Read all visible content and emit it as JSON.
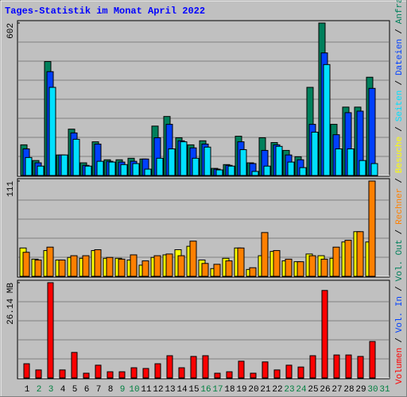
{
  "title": "Tages-Statistik im Monat April 2022",
  "x_axis": {
    "categories": [
      "1",
      "2",
      "3",
      "4",
      "5",
      "6",
      "7",
      "8",
      "9",
      "10",
      "11",
      "12",
      "13",
      "14",
      "15",
      "16",
      "17",
      "18",
      "19",
      "20",
      "21",
      "22",
      "23",
      "24",
      "25",
      "26",
      "27",
      "28",
      "29",
      "30",
      "31"
    ],
    "colors": [
      "#000000",
      "#008040",
      "#008040",
      "#000000",
      "#000000",
      "#000000",
      "#000000",
      "#000000",
      "#008040",
      "#008040",
      "#000000",
      "#000000",
      "#000000",
      "#000000",
      "#000000",
      "#008040",
      "#008040",
      "#000000",
      "#000000",
      "#000000",
      "#000000",
      "#000000",
      "#008040",
      "#008040",
      "#000000",
      "#000000",
      "#000000",
      "#000000",
      "#000000",
      "#008040",
      "#008040"
    ]
  },
  "legend_separator": "/",
  "legend": [
    {
      "text": "Volumen",
      "color": "#ff0000"
    },
    {
      "text": "Vol. In",
      "color": "#0040ff"
    },
    {
      "text": "Vol. Out",
      "color": "#00805c"
    },
    {
      "text": "Rechner",
      "color": "#ff8000"
    },
    {
      "text": "Besuche",
      "color": "#ffff00"
    },
    {
      "text": "Seiten",
      "color": "#00e0ff"
    },
    {
      "text": "Dateien",
      "color": "#0040ff"
    },
    {
      "text": "Anfragen",
      "color": "#00805c"
    }
  ],
  "chart_data": [
    {
      "type": "bar",
      "ylim": [
        0,
        602
      ],
      "yticks": [
        602
      ],
      "series": [
        {
          "name": "Anfragen",
          "color": "#00805c",
          "values": [
            121,
            59,
            450,
            81,
            183,
            50,
            133,
            62,
            62,
            68,
            65,
            195,
            233,
            149,
            121,
            137,
            28,
            43,
            155,
            50,
            149,
            130,
            99,
            74,
            348,
            602,
            202,
            270,
            270,
            388,
            null
          ]
        },
        {
          "name": "Dateien",
          "color": "#0040ff",
          "values": [
            105,
            50,
            410,
            81,
            168,
            40,
            124,
            56,
            53,
            56,
            65,
            149,
            202,
            137,
            109,
            124,
            25,
            40,
            133,
            47,
            99,
            121,
            81,
            62,
            202,
            484,
            161,
            248,
            254,
            344,
            null
          ]
        },
        {
          "name": "Seiten",
          "color": "#00e0ff",
          "values": [
            71,
            37,
            348,
            81,
            143,
            37,
            56,
            53,
            43,
            47,
            25,
            68,
            105,
            133,
            68,
            112,
            22,
            37,
            102,
            16,
            37,
            115,
            53,
            31,
            171,
            438,
            105,
            105,
            59,
            47,
            null
          ]
        }
      ]
    },
    {
      "type": "bar",
      "ylim": [
        0,
        111
      ],
      "yticks": [
        111
      ],
      "series": [
        {
          "name": "Besuche",
          "color": "#ffff00",
          "values": [
            33,
            20,
            30,
            19,
            22,
            21,
            30,
            21,
            21,
            19,
            13,
            22,
            25,
            31,
            35,
            19,
            9,
            21,
            33,
            8,
            24,
            29,
            18,
            17,
            26,
            24,
            21,
            40,
            52,
            40,
            null
          ]
        },
        {
          "name": "Rechner",
          "color": "#ff8000",
          "values": [
            28,
            19,
            34,
            19,
            24,
            24,
            31,
            22,
            20,
            25,
            18,
            24,
            26,
            24,
            41,
            15,
            14,
            18,
            33,
            10,
            51,
            30,
            20,
            17,
            24,
            20,
            34,
            42,
            52,
            111,
            null
          ]
        }
      ]
    },
    {
      "type": "bar",
      "ylim": [
        0,
        26.14
      ],
      "yticks": [
        {
          "value": 26.14,
          "label": "26.14 MB"
        }
      ],
      "series": [
        {
          "name": "Volumen",
          "color": "#ff0000",
          "values": [
            3.9,
            2.2,
            26.14,
            2.2,
            7.0,
            1.3,
            3.5,
            1.7,
            1.7,
            2.8,
            2.6,
            3.9,
            6.1,
            2.8,
            5.9,
            6.1,
            1.3,
            1.7,
            4.6,
            1.3,
            4.4,
            2.2,
            3.5,
            3.0,
            6.1,
            24.0,
            6.3,
            6.3,
            5.9,
            10.0,
            null
          ]
        }
      ]
    }
  ]
}
